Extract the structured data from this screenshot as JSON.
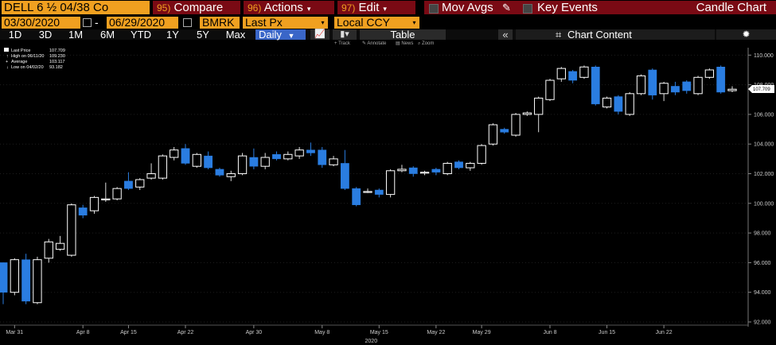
{
  "toolbar": {
    "ticker": "DELL 6 ½ 04/38 Co",
    "compare": {
      "num": "95)",
      "label": "Compare"
    },
    "actions": {
      "num": "96)",
      "label": "Actions"
    },
    "edit": {
      "num": "97)",
      "label": "Edit"
    },
    "mov_avgs": "Mov Avgs",
    "key_events": "Key Events",
    "title": "Candle Chart"
  },
  "settings": {
    "start_date": "03/30/2020",
    "date_sep": "-",
    "end_date": "06/29/2020",
    "source": "BMRK",
    "field": "Last Px",
    "currency": "Local CCY"
  },
  "ranges": [
    "1D",
    "3D",
    "1M",
    "6M",
    "YTD",
    "1Y",
    "5Y",
    "Max"
  ],
  "period": "Daily",
  "table_label": "Table",
  "chart_content_label": "Chart Content",
  "tools": [
    "Track",
    "Annotate",
    "News",
    "Zoom"
  ],
  "legend": [
    {
      "label": "Last Price",
      "value": "107.709"
    },
    {
      "label": "High on 06/11/20",
      "value": "109.230"
    },
    {
      "label": "Average",
      "value": "103.117"
    },
    {
      "label": "Low on 04/02/20",
      "value": "93.182"
    }
  ],
  "colors": {
    "up": "#ffffff",
    "down": "#2a7de1",
    "accent": "#f0a020",
    "bar": "#7a0a14"
  },
  "chart_data": {
    "type": "candlestick",
    "ylim": [
      92,
      110.5
    ],
    "yticks": [
      "92.000",
      "94.000",
      "96.000",
      "98.000",
      "100.000",
      "102.000",
      "104.000",
      "106.000",
      "108.000",
      "110.000"
    ],
    "last_price_label": "107.709",
    "xticks": [
      {
        "label": "Mar 31",
        "i": 1
      },
      {
        "label": "Apr 8",
        "i": 7
      },
      {
        "label": "Apr 15",
        "i": 11
      },
      {
        "label": "Apr 22",
        "i": 16
      },
      {
        "label": "Apr 30",
        "i": 22
      },
      {
        "label": "May 8",
        "i": 28
      },
      {
        "label": "May 15",
        "i": 33
      },
      {
        "label": "May 22",
        "i": 38
      },
      {
        "label": "May 29",
        "i": 42
      },
      {
        "label": "Jun 8",
        "i": 48
      },
      {
        "label": "Jun 15",
        "i": 53
      },
      {
        "label": "Jun 22",
        "i": 58
      }
    ],
    "year_label": "2020",
    "candles": [
      [
        96.0,
        94.0,
        96.0,
        93.2
      ],
      [
        94.0,
        96.2,
        96.3,
        93.8
      ],
      [
        96.2,
        93.4,
        96.6,
        93.2
      ],
      [
        93.3,
        96.2,
        96.4,
        93.2
      ],
      [
        96.3,
        97.4,
        97.6,
        96.0
      ],
      [
        96.9,
        97.3,
        97.8,
        96.8
      ],
      [
        96.5,
        99.9,
        100.0,
        96.4
      ],
      [
        99.7,
        99.2,
        99.9,
        99.0
      ],
      [
        99.5,
        100.4,
        100.5,
        99.3
      ],
      [
        100.3,
        100.3,
        101.4,
        100.1
      ],
      [
        100.3,
        101.0,
        101.1,
        100.2
      ],
      [
        101.5,
        101.0,
        102.1,
        100.9
      ],
      [
        101.1,
        101.6,
        101.7,
        100.9
      ],
      [
        101.7,
        102.0,
        102.7,
        101.6
      ],
      [
        101.7,
        103.2,
        103.3,
        101.6
      ],
      [
        103.1,
        103.6,
        103.8,
        102.9
      ],
      [
        103.7,
        102.7,
        104.0,
        102.6
      ],
      [
        102.5,
        103.3,
        103.4,
        102.4
      ],
      [
        103.2,
        102.4,
        103.5,
        102.3
      ],
      [
        102.3,
        101.9,
        102.4,
        101.8
      ],
      [
        101.8,
        102.0,
        102.2,
        101.5
      ],
      [
        102.0,
        103.2,
        103.4,
        101.9
      ],
      [
        103.1,
        102.5,
        103.7,
        102.3
      ],
      [
        102.5,
        103.1,
        103.4,
        102.3
      ],
      [
        103.3,
        103.0,
        103.5,
        102.9
      ],
      [
        103.0,
        103.3,
        103.5,
        102.9
      ],
      [
        103.2,
        103.6,
        103.8,
        103.0
      ],
      [
        103.6,
        103.4,
        104.1,
        103.2
      ],
      [
        103.6,
        102.6,
        103.8,
        102.4
      ],
      [
        102.6,
        103.0,
        103.2,
        102.5
      ],
      [
        102.7,
        101.0,
        103.6,
        100.9
      ],
      [
        101.0,
        99.9,
        101.1,
        99.8
      ],
      [
        100.8,
        100.8,
        101.0,
        100.7
      ],
      [
        100.9,
        100.6,
        101.0,
        100.4
      ],
      [
        100.6,
        102.2,
        102.3,
        100.4
      ],
      [
        102.2,
        102.3,
        102.6,
        102.1
      ],
      [
        102.4,
        102.0,
        102.5,
        101.8
      ],
      [
        102.1,
        102.1,
        102.2,
        101.9
      ],
      [
        102.3,
        102.1,
        102.4,
        101.9
      ],
      [
        102.0,
        102.7,
        102.8,
        101.9
      ],
      [
        102.8,
        102.4,
        102.9,
        102.3
      ],
      [
        102.4,
        102.7,
        102.8,
        102.2
      ],
      [
        102.7,
        103.9,
        104.0,
        102.6
      ],
      [
        104.0,
        105.3,
        105.4,
        103.9
      ],
      [
        105.0,
        104.8,
        105.1,
        104.7
      ],
      [
        104.6,
        106.0,
        106.1,
        104.5
      ],
      [
        106.0,
        106.1,
        106.2,
        105.9
      ],
      [
        106.0,
        107.1,
        107.2,
        104.8
      ],
      [
        107.0,
        108.3,
        108.4,
        106.9
      ],
      [
        108.4,
        109.1,
        109.2,
        108.2
      ],
      [
        108.9,
        108.3,
        109.0,
        108.1
      ],
      [
        108.5,
        109.2,
        109.3,
        108.4
      ],
      [
        109.2,
        106.7,
        109.3,
        106.6
      ],
      [
        106.5,
        107.1,
        107.2,
        106.4
      ],
      [
        107.2,
        106.2,
        107.3,
        106.0
      ],
      [
        106.0,
        107.4,
        107.5,
        105.9
      ],
      [
        107.4,
        108.6,
        108.7,
        107.3
      ],
      [
        109.0,
        107.3,
        109.1,
        107.0
      ],
      [
        107.4,
        108.1,
        108.2,
        106.9
      ],
      [
        107.9,
        107.5,
        108.2,
        107.3
      ],
      [
        108.2,
        107.6,
        108.3,
        107.4
      ],
      [
        107.4,
        108.5,
        108.6,
        107.3
      ],
      [
        108.5,
        109.0,
        109.1,
        108.4
      ],
      [
        109.2,
        107.5,
        109.3,
        107.4
      ],
      [
        107.6,
        107.7,
        107.9,
        107.5
      ]
    ]
  }
}
